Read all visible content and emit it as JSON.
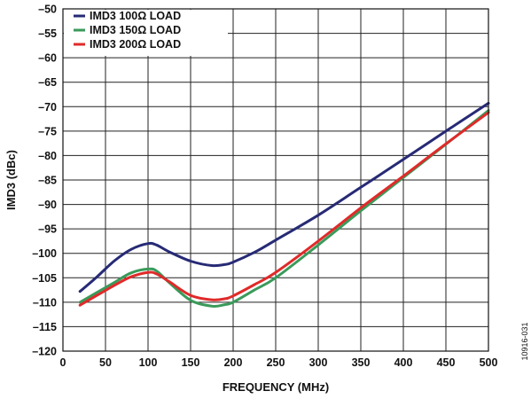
{
  "chart_data": {
    "type": "line",
    "title": "",
    "xlabel": "FREQUENCY (MHz)",
    "ylabel": "IMD3 (dBc)",
    "xlim": [
      0,
      500
    ],
    "ylim": [
      -120,
      -50
    ],
    "xticks": [
      "0",
      "50",
      "100",
      "150",
      "200",
      "250",
      "300",
      "350",
      "400",
      "450",
      "500"
    ],
    "yticks": [
      "–50",
      "–55",
      "–60",
      "–65",
      "–70",
      "–75",
      "–80",
      "–85",
      "–90",
      "–95",
      "–100",
      "–105",
      "–110",
      "–115",
      "–120"
    ],
    "grid": true,
    "legend_position": "top-left",
    "series": [
      {
        "name": "IMD3 100Ω LOAD",
        "color": "#262a75",
        "x": [
          20,
          40,
          60,
          80,
          100,
          110,
          125,
          150,
          175,
          190,
          200,
          225,
          250,
          300,
          350,
          400,
          450,
          500
        ],
        "y": [
          -107.8,
          -104.8,
          -101.6,
          -99.2,
          -98.0,
          -98.3,
          -99.7,
          -101.6,
          -102.5,
          -102.3,
          -101.8,
          -99.8,
          -97.3,
          -92.2,
          -86.5,
          -80.8,
          -75.0,
          -69.3
        ]
      },
      {
        "name": "IMD3 150Ω LOAD",
        "color": "#3a9a5a",
        "x": [
          20,
          40,
          60,
          80,
          100,
          110,
          125,
          150,
          175,
          190,
          200,
          225,
          250,
          300,
          350,
          400,
          450,
          500
        ],
        "y": [
          -110.0,
          -108.0,
          -106.0,
          -104.0,
          -103.2,
          -103.6,
          -106.0,
          -109.6,
          -110.8,
          -110.5,
          -110.0,
          -107.5,
          -105.0,
          -98.3,
          -91.3,
          -84.5,
          -77.7,
          -70.8
        ]
      },
      {
        "name": "IMD3 200Ω LOAD",
        "color": "#e02a2a",
        "x": [
          20,
          40,
          60,
          80,
          100,
          110,
          125,
          150,
          175,
          190,
          200,
          225,
          250,
          300,
          350,
          400,
          450,
          500
        ],
        "y": [
          -110.6,
          -108.6,
          -106.6,
          -104.8,
          -103.9,
          -104.2,
          -105.8,
          -108.6,
          -109.5,
          -109.3,
          -108.7,
          -106.4,
          -103.9,
          -97.5,
          -90.7,
          -84.2,
          -77.6,
          -71.2
        ]
      }
    ],
    "side_label": "10916-031"
  }
}
